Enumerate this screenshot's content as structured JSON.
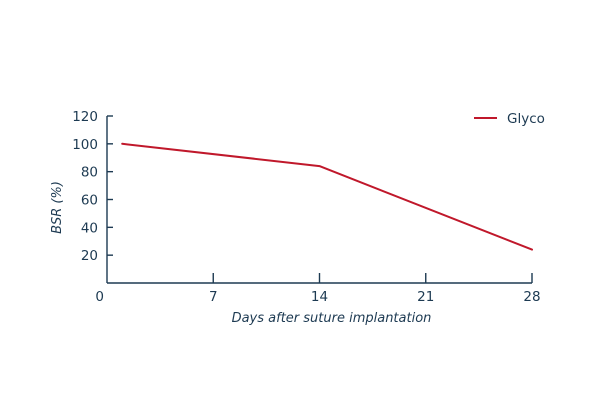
{
  "chart_data": {
    "type": "line",
    "title": "",
    "xlabel": "Days after suture implantation",
    "ylabel": "BSR (%)",
    "xlim": [
      0,
      28
    ],
    "ylim": [
      0,
      120
    ],
    "x_ticks": [
      0,
      7,
      14,
      21,
      28
    ],
    "y_ticks": [
      20,
      40,
      60,
      80,
      100,
      120
    ],
    "grid": false,
    "legend_position": "top-right",
    "series": [
      {
        "name": "Glyco",
        "color": "#c0182b",
        "x": [
          1,
          14,
          28
        ],
        "y": [
          100,
          84,
          24
        ]
      }
    ]
  },
  "colors": {
    "axis": "#1d3a52",
    "text": "#1d3a52"
  }
}
